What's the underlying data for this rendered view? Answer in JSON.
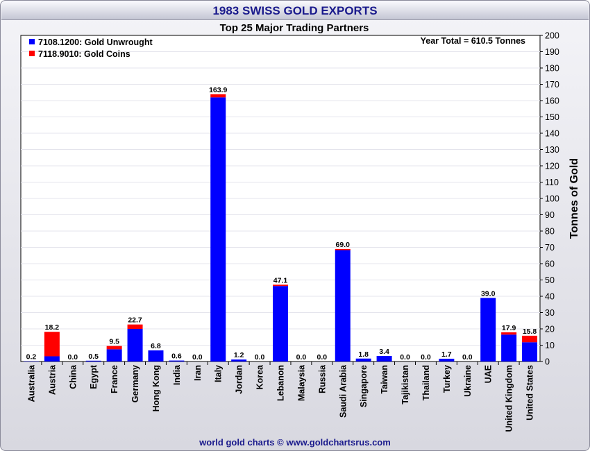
{
  "title": "1983 SWISS GOLD EXPORTS",
  "footer": "world gold charts © www.goldchartsrus.com",
  "colors": {
    "unwrought": "#0000ff",
    "coins": "#ff0000",
    "title": "#1a1a8c"
  },
  "chart_data": {
    "type": "bar",
    "stacked": true,
    "title": "Top 25 Major Trading Partners",
    "annotation": "Year Total = 610.5 Tonnes",
    "ylabel": "Tonnes of Gold",
    "ylim": [
      0,
      200
    ],
    "ytick_step": 10,
    "grid": true,
    "legend_position": "top-left",
    "categories": [
      "Australia",
      "Austria",
      "China",
      "Egypt",
      "France",
      "Germany",
      "Hong Kong",
      "India",
      "Iran",
      "Italy",
      "Jordan",
      "Korea",
      "Lebanon",
      "Malaysia",
      "Russia",
      "Saudi Arabia",
      "Singapore",
      "Taiwan",
      "Tajikistan",
      "Thailand",
      "Turkey",
      "Ukraine",
      "UAE",
      "United Kingdom",
      "United States"
    ],
    "series": [
      {
        "name": "7108.1200: Gold Unwrought",
        "values": [
          0.2,
          3.2,
          0.0,
          0.5,
          7.5,
          20.0,
          6.8,
          0.6,
          0.0,
          162.0,
          1.2,
          0.0,
          46.3,
          0.0,
          0.0,
          68.3,
          1.8,
          3.4,
          0.0,
          0.0,
          1.7,
          0.0,
          39.0,
          16.5,
          11.8
        ]
      },
      {
        "name": "7118.9010: Gold Coins",
        "values": [
          0.0,
          15.0,
          0.0,
          0.0,
          2.0,
          2.7,
          0.0,
          0.0,
          0.0,
          1.9,
          0.0,
          0.0,
          0.8,
          0.0,
          0.0,
          0.7,
          0.0,
          0.0,
          0.0,
          0.0,
          0.0,
          0.0,
          0.0,
          1.4,
          4.0
        ]
      }
    ],
    "data_labels": [
      "0.2",
      "18.2",
      "0.0",
      "0.5",
      "9.5",
      "22.7",
      "6.8",
      "0.6",
      "0.0",
      "163.9",
      "1.2",
      "0.0",
      "47.1",
      "0.0",
      "0.0",
      "69.0",
      "1.8",
      "3.4",
      "0.0",
      "0.0",
      "1.7",
      "0.0",
      "39.0",
      "17.9",
      "15.8"
    ]
  }
}
